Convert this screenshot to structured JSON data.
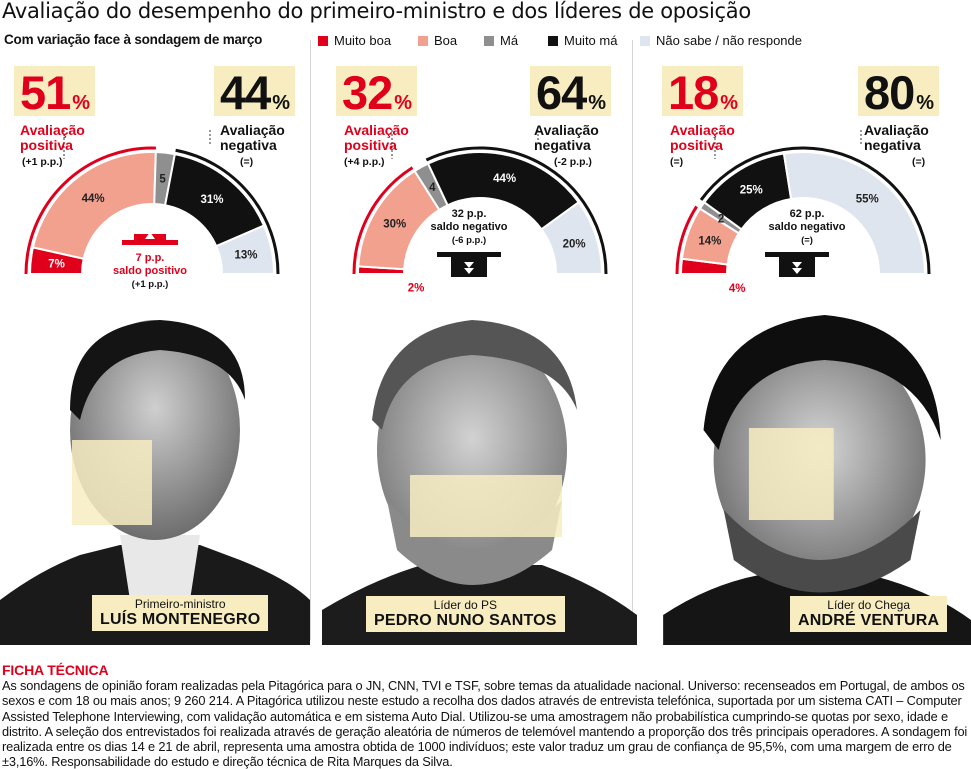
{
  "title": "Avaliação do desempenho do primeiro-ministro e dos líderes de oposição",
  "subtitle": "Com variação face à sondagem de março",
  "legend": [
    {
      "label": "Muito boa",
      "color": "#e0001b"
    },
    {
      "label": "Boa",
      "color": "#f2a18f"
    },
    {
      "label": "Má",
      "color": "#8f8f8f"
    },
    {
      "label": "Muito má",
      "color": "#111111"
    },
    {
      "label": "Não sabe / não responde",
      "color": "#dfe5ee"
    }
  ],
  "chart_data": [
    {
      "type": "half-donut",
      "leader": "LUÍS MONTENEGRO",
      "role": "Primeiro-ministro",
      "categories": [
        "Muito boa",
        "Boa",
        "Não sabe / não responde",
        "Má",
        "Muito má"
      ],
      "values": [
        7,
        44,
        5,
        31,
        13
      ],
      "value_labels": [
        "7%",
        "44%",
        "5",
        "31%",
        "13%"
      ],
      "positive": {
        "value": "51",
        "unit": "%",
        "label_1": "Avaliação",
        "label_2": "positiva",
        "change": "(+1 p.p.)"
      },
      "negative": {
        "value": "44",
        "unit": "%",
        "label_1": "Avaliação",
        "label_2": "negativa",
        "change": "(=)"
      },
      "balance": {
        "value_line": "7 p.p.",
        "label": "saldo positivo",
        "change": "(+1 p.p.)",
        "direction": "up"
      }
    },
    {
      "type": "half-donut",
      "leader": "PEDRO NUNO SANTOS",
      "role": "Líder do PS",
      "categories": [
        "Muito boa",
        "Boa",
        "Não sabe / não responde",
        "Má",
        "Muito má"
      ],
      "values": [
        2,
        30,
        4,
        44,
        20
      ],
      "value_labels": [
        "2%",
        "30%",
        "4",
        "44%",
        "20%"
      ],
      "positive": {
        "value": "32",
        "unit": "%",
        "label_1": "Avaliação",
        "label_2": "positiva",
        "change": "(+4 p.p.)"
      },
      "negative": {
        "value": "64",
        "unit": "%",
        "label_1": "Avaliação",
        "label_2": "negativa",
        "change": "(-2 p.p.)"
      },
      "balance": {
        "value_line": "32 p.p.",
        "label": "saldo negativo",
        "change": "(-6 p.p.)",
        "direction": "down"
      }
    },
    {
      "type": "half-donut",
      "leader": "ANDRÉ VENTURA",
      "role": "Líder do Chega",
      "categories": [
        "Muito boa",
        "Boa",
        "Não sabe / não responde",
        "Má",
        "Muito má"
      ],
      "values": [
        4,
        14,
        2,
        25,
        55
      ],
      "value_labels": [
        "4%",
        "14%",
        "2",
        "25%",
        "55%"
      ],
      "positive": {
        "value": "18",
        "unit": "%",
        "label_1": "Avaliação",
        "label_2": "positiva",
        "change": "(=)"
      },
      "negative": {
        "value": "80",
        "unit": "%",
        "label_1": "Avaliação",
        "label_2": "negativa",
        "change": "(=)"
      },
      "balance": {
        "value_line": "62 p.p.",
        "label": "saldo negativo",
        "change": "(=)",
        "direction": "down"
      }
    }
  ],
  "ficha": {
    "title": "FICHA TÉCNICA",
    "text": "As sondagens de opinião foram realizadas pela Pitagórica para o JN, CNN, TVI e TSF, sobre temas da atualidade nacional. Universo: recenseados em Portugal, de ambos os sexos e com 18 ou mais anos; 9 260 214. A Pitagórica utilizou neste estudo a recolha dos dados através de entrevista telefónica, suportada por um sistema CATI – Computer Assisted Telephone Interviewing, com validação automática e em sistema Auto Dial. Utilizou-se uma amostragem não probabilística cumprindo-se quotas por sexo, idade e distrito. A seleção dos entrevistados foi realizada através de geração aleatória de números de telemóvel mantendo a proporção dos três principais operadores. A sondagem foi realizada entre os dias 14 e 21 de abril, representa uma amostra obtida de 1000 indivíduos; este valor traduz um grau de confiança de 95,5%, com uma margem de erro de ±3,16%. Responsabilidade do estudo e direção técnica de Rita Marques da Silva."
  }
}
